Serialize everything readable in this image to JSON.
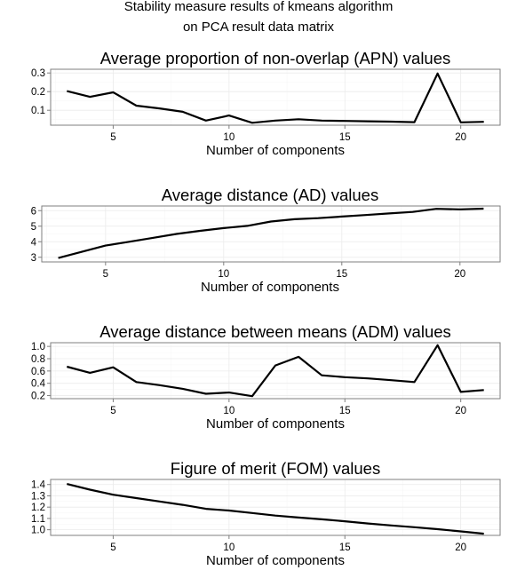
{
  "figure": {
    "title_lines": [
      "Stability measure results of kmeans algorithm",
      "on PCA result data matrix"
    ]
  },
  "chart_data": [
    {
      "type": "line",
      "title": "Average proportion of non-overlap (APN) values",
      "xlabel": "Number of components",
      "ylabel": "",
      "xlim": [
        2.3,
        21.7
      ],
      "ylim": [
        0.02,
        0.32
      ],
      "xticks": [
        5,
        10,
        15,
        20
      ],
      "yticks": [
        0.1,
        0.2,
        0.3
      ],
      "ytick_labels": [
        "0.1",
        "0.2",
        "0.3"
      ],
      "grid": true,
      "series": [
        {
          "x": [
            3,
            4,
            5,
            6,
            7,
            8,
            9,
            10,
            11,
            12,
            13,
            14,
            15,
            16,
            17,
            18,
            19,
            20,
            21
          ],
          "y": [
            0.203,
            0.172,
            0.196,
            0.125,
            0.11,
            0.092,
            0.045,
            0.072,
            0.033,
            0.045,
            0.052,
            0.045,
            0.043,
            0.041,
            0.039,
            0.036,
            0.297,
            0.035,
            0.038
          ]
        }
      ]
    },
    {
      "type": "line",
      "title": "Average distance (AD) values",
      "xlabel": "Number of components",
      "ylabel": "",
      "xlim": [
        2.3,
        21.7
      ],
      "ylim": [
        2.7,
        6.3
      ],
      "xticks": [
        5,
        10,
        15,
        20
      ],
      "yticks": [
        3,
        4,
        5,
        6
      ],
      "ytick_labels": [
        "3",
        "4",
        "5",
        "6"
      ],
      "grid": true,
      "series": [
        {
          "x": [
            3,
            4,
            5,
            6,
            7,
            8,
            9,
            10,
            11,
            12,
            13,
            14,
            15,
            16,
            17,
            18,
            19,
            20,
            21
          ],
          "y": [
            2.95,
            3.35,
            3.75,
            4.0,
            4.25,
            4.5,
            4.7,
            4.88,
            5.02,
            5.3,
            5.45,
            5.52,
            5.62,
            5.72,
            5.82,
            5.92,
            6.12,
            6.08,
            6.13
          ]
        }
      ]
    },
    {
      "type": "line",
      "title": "Average distance between means (ADM) values",
      "xlabel": "Number of components",
      "ylabel": "",
      "xlim": [
        2.3,
        21.7
      ],
      "ylim": [
        0.15,
        1.06
      ],
      "xticks": [
        5,
        10,
        15,
        20
      ],
      "yticks": [
        0.2,
        0.4,
        0.6,
        0.8,
        1.0
      ],
      "ytick_labels": [
        "0.2",
        "0.4",
        "0.6",
        "0.8",
        "1.0"
      ],
      "grid": true,
      "series": [
        {
          "x": [
            3,
            4,
            5,
            6,
            7,
            8,
            9,
            10,
            11,
            12,
            13,
            14,
            15,
            16,
            17,
            18,
            19,
            20,
            21
          ],
          "y": [
            0.67,
            0.57,
            0.66,
            0.42,
            0.37,
            0.31,
            0.23,
            0.25,
            0.19,
            0.69,
            0.83,
            0.53,
            0.5,
            0.48,
            0.45,
            0.42,
            1.02,
            0.26,
            0.29
          ]
        }
      ]
    },
    {
      "type": "line",
      "title": "Figure of merit (FOM) values",
      "xlabel": "Number of components",
      "ylabel": "",
      "xlim": [
        2.3,
        21.7
      ],
      "ylim": [
        0.95,
        1.445
      ],
      "xticks": [
        5,
        10,
        15,
        20
      ],
      "yticks": [
        1.0,
        1.1,
        1.2,
        1.3,
        1.4
      ],
      "ytick_labels": [
        "1.0",
        "1.1",
        "1.2",
        "1.3",
        "1.4"
      ],
      "grid": true,
      "series": [
        {
          "x": [
            3,
            4,
            5,
            6,
            7,
            8,
            9,
            10,
            11,
            12,
            13,
            14,
            15,
            16,
            17,
            18,
            19,
            20,
            21
          ],
          "y": [
            1.405,
            1.355,
            1.31,
            1.28,
            1.25,
            1.22,
            1.185,
            1.17,
            1.148,
            1.125,
            1.108,
            1.092,
            1.075,
            1.055,
            1.038,
            1.022,
            1.005,
            0.985,
            0.965
          ]
        }
      ]
    }
  ]
}
